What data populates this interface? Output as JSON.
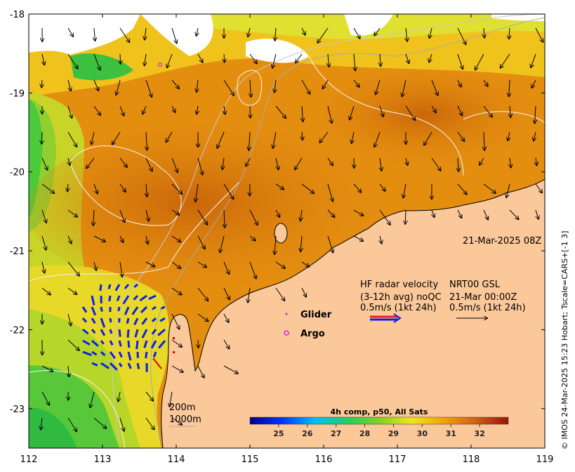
{
  "map": {
    "lon_range": [
      112,
      119
    ],
    "lat_range": [
      -23.5,
      -18
    ],
    "x_ticks": [
      {
        "value": 112,
        "label": "112"
      },
      {
        "value": 113,
        "label": "113"
      },
      {
        "value": 114,
        "label": "114"
      },
      {
        "value": 115,
        "label": "115"
      },
      {
        "value": 116,
        "label": "116"
      },
      {
        "value": 117,
        "label": "117"
      },
      {
        "value": 118,
        "label": "118"
      },
      {
        "value": 119,
        "label": "119"
      }
    ],
    "y_ticks": [
      {
        "value": -18,
        "label": "-18"
      },
      {
        "value": -19,
        "label": "-19"
      },
      {
        "value": -20,
        "label": "-20"
      },
      {
        "value": -21,
        "label": "-21"
      },
      {
        "value": -22,
        "label": "-22"
      },
      {
        "value": -23,
        "label": "-23"
      }
    ],
    "colors": {
      "land": "#fbc89a",
      "ocean_warm": "#d8780c",
      "ocean_mid": "#f2ae1e",
      "ocean_cool": "#2fbf3a",
      "radar_arrow": "#1020e0",
      "glider": "#e020e0",
      "argo": "#e020e0",
      "contour": "#cfcfcf"
    }
  },
  "annotations": {
    "date": "21-Mar-2025 08Z",
    "hf_line1": "HF radar velocity",
    "hf_line2": "(3-12h avg) noQC",
    "hf_line3": "0.5m/s (1kt 24h)",
    "gsl_line1": "NRT00 GSL",
    "gsl_line2": "21-Mar 00:00Z",
    "gsl_line3": "0.5m/s (1kt 24h)",
    "glider": "Glider",
    "argo": "Argo",
    "depth_200": "200m",
    "depth_1000": "1000m",
    "credit": "© IMOS 24-Mar-2025 15:23 Hobart; Tscale=CARS+[-1 3]"
  },
  "colorbar": {
    "title": "4h comp, p50, All Sats",
    "range": [
      24,
      33
    ],
    "ticks": [
      {
        "value": 25,
        "label": "25"
      },
      {
        "value": 26,
        "label": "26"
      },
      {
        "value": 27,
        "label": "27"
      },
      {
        "value": 28,
        "label": "28"
      },
      {
        "value": 29,
        "label": "29"
      },
      {
        "value": 30,
        "label": "30"
      },
      {
        "value": 31,
        "label": "31"
      },
      {
        "value": 32,
        "label": "32"
      }
    ],
    "gradient": [
      "#00008f",
      "#0033ff",
      "#00bfff",
      "#20d060",
      "#7ed320",
      "#f0e61a",
      "#f5a20a",
      "#d06010",
      "#a01008"
    ]
  }
}
